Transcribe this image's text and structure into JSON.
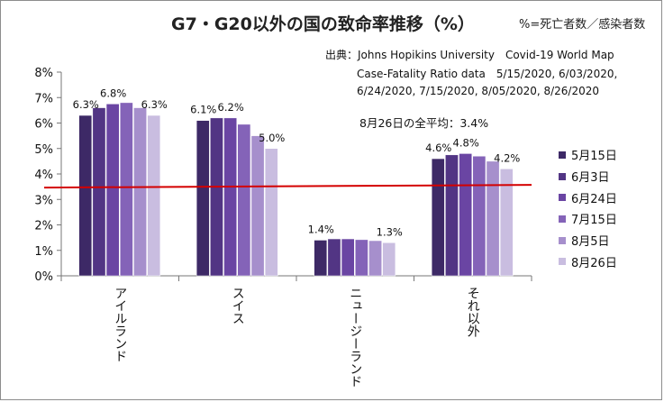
{
  "title": "G7・G20以外の国の致命率推移（%）",
  "unit_note": "%=死亡者数／感染者数",
  "source": {
    "line1": "出典：Johns Hopikins University　Covid-19 World Map",
    "line2": "Case-Fatality Ratio data　5/15/2020, 6/03/2020,",
    "line3": "6/24/2020, 7/15/2020, 8/05/2020, 8/26/2020"
  },
  "average_note": "8月26日の全平均：3.4%",
  "chart_data": {
    "type": "bar",
    "categories": [
      "アイルランド",
      "スイス",
      "ニュージーランド",
      "それ以外"
    ],
    "series": [
      {
        "name": "5月15日",
        "color": "#3d2966",
        "values": [
          6.3,
          6.1,
          1.4,
          4.6
        ]
      },
      {
        "name": "6月3日",
        "color": "#523584",
        "values": [
          6.6,
          6.2,
          1.45,
          4.75
        ]
      },
      {
        "name": "6月24日",
        "color": "#6a45a3",
        "values": [
          6.75,
          6.2,
          1.45,
          4.8
        ]
      },
      {
        "name": "7月15日",
        "color": "#8463b8",
        "values": [
          6.8,
          5.95,
          1.42,
          4.7
        ]
      },
      {
        "name": "8月5日",
        "color": "#a68fcc",
        "values": [
          6.6,
          5.5,
          1.38,
          4.5
        ]
      },
      {
        "name": "8月26日",
        "color": "#c9bde0",
        "values": [
          6.3,
          5.0,
          1.3,
          4.2
        ]
      }
    ],
    "data_labels": [
      {
        "category": 0,
        "series": 0,
        "text": "6.3%"
      },
      {
        "category": 0,
        "series": 2,
        "text": "6.8%"
      },
      {
        "category": 0,
        "series": 5,
        "text": "6.3%"
      },
      {
        "category": 1,
        "series": 0,
        "text": "6.1%"
      },
      {
        "category": 1,
        "series": 2,
        "text": "6.2%"
      },
      {
        "category": 1,
        "series": 5,
        "text": "5.0%"
      },
      {
        "category": 2,
        "series": 0,
        "text": "1.4%"
      },
      {
        "category": 2,
        "series": 5,
        "text": "1.3%"
      },
      {
        "category": 3,
        "series": 0,
        "text": "4.6%"
      },
      {
        "category": 3,
        "series": 2,
        "text": "4.8%"
      },
      {
        "category": 3,
        "series": 5,
        "text": "4.2%"
      }
    ],
    "ylim": [
      0,
      8
    ],
    "yticks": [
      "0%",
      "1%",
      "2%",
      "3%",
      "4%",
      "5%",
      "6%",
      "7%",
      "8%"
    ],
    "reference_line": {
      "value": 3.5,
      "color": "#d40000"
    },
    "grid": false,
    "legend_position": "right"
  }
}
